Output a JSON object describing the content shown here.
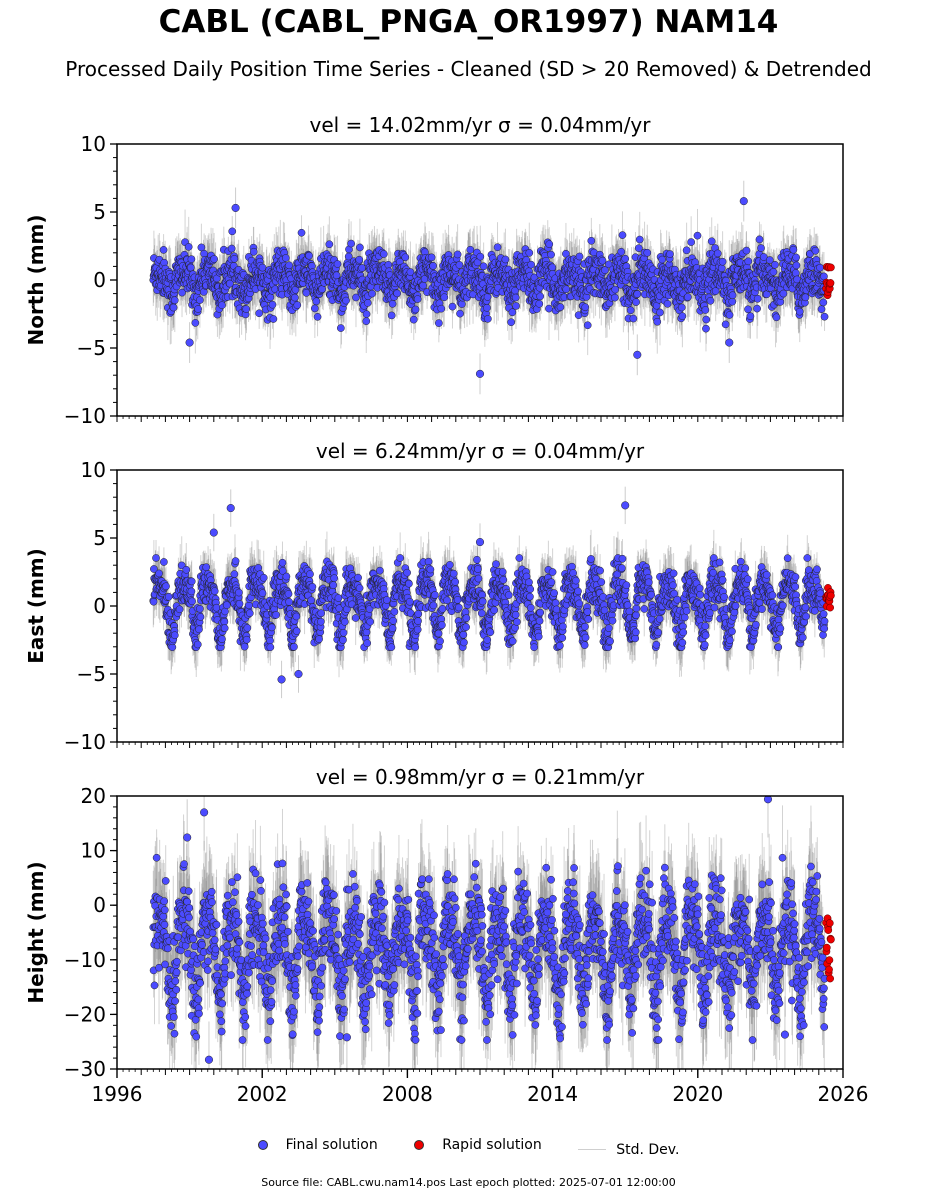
{
  "title": "CABL (CABL_PNGA_OR1997) NAM14",
  "subtitle": "Processed Daily Position Time Series - Cleaned (SD > 20 Removed) & Detrended",
  "legend": {
    "final_label": "Final solution",
    "rapid_label": "Rapid solution",
    "std_label": "Std. Dev."
  },
  "footer": "Source file: CABL.cwu.nam14.pos  Last epoch plotted: 2025-07-01 12:00:00",
  "colors": {
    "final": "#4b4bff",
    "rapid": "#ee0000",
    "std_dev": "#808080",
    "marker_edge": "#222222"
  },
  "chart_data": [
    {
      "type": "scatter",
      "panel": "north",
      "title": "vel = 14.02mm/yr   σ = 0.04mm/yr",
      "ylabel": "North (mm)",
      "xlabel": "",
      "xlim": [
        1996,
        2026
      ],
      "ylim": [
        -10,
        10
      ],
      "yticks": [
        -10,
        -5,
        0,
        5,
        10
      ],
      "ytick_labels": [
        "−10",
        "−5",
        "0",
        "5",
        "10"
      ],
      "data_start": 1997.5,
      "data_end": 2025.25,
      "rapid_start": 2025.3,
      "rapid_end": 2025.5,
      "typical_range": [
        -3,
        3
      ],
      "seasonal_amplitude": 0.8,
      "outliers": [
        {
          "x": 2011.0,
          "y": -6.9
        },
        {
          "x": 2021.9,
          "y": 5.8
        },
        {
          "x": 2017.5,
          "y": -5.5
        },
        {
          "x": 2021.3,
          "y": -4.6
        },
        {
          "x": 1999.0,
          "y": -4.6
        },
        {
          "x": 2000.9,
          "y": 5.3
        }
      ]
    },
    {
      "type": "scatter",
      "panel": "east",
      "title": "vel = 6.24mm/yr   σ = 0.04mm/yr",
      "ylabel": "East (mm)",
      "xlabel": "",
      "xlim": [
        1996,
        2026
      ],
      "ylim": [
        -10,
        10
      ],
      "yticks": [
        -10,
        -5,
        0,
        5,
        10
      ],
      "ytick_labels": [
        "−10",
        "−5",
        "0",
        "5",
        "10"
      ],
      "data_start": 1997.5,
      "data_end": 2025.25,
      "rapid_start": 2025.3,
      "rapid_end": 2025.5,
      "typical_range": [
        -2.5,
        3
      ],
      "seasonal_amplitude": 1.8,
      "outliers": [
        {
          "x": 2000.7,
          "y": 7.2
        },
        {
          "x": 2000.0,
          "y": 5.4
        },
        {
          "x": 2017.0,
          "y": 7.4
        },
        {
          "x": 2002.8,
          "y": -5.4
        },
        {
          "x": 2003.5,
          "y": -5.0
        },
        {
          "x": 2011.0,
          "y": 4.7
        }
      ]
    },
    {
      "type": "scatter",
      "panel": "height",
      "title": "vel = 0.98mm/yr   σ = 0.21mm/yr",
      "ylabel": "Height (mm)",
      "xlabel": "",
      "xlim": [
        1996,
        2026
      ],
      "ylim": [
        -30,
        20
      ],
      "yticks": [
        -30,
        -20,
        -10,
        0,
        10,
        20
      ],
      "ytick_labels": [
        "−30",
        "−20",
        "−10",
        "0",
        "10",
        "20"
      ],
      "xticks": [
        1996,
        2002,
        2008,
        2014,
        2020,
        2026
      ],
      "xtick_labels": [
        "1996",
        "2002",
        "2008",
        "2014",
        "2020",
        "2026"
      ],
      "data_start": 1997.5,
      "data_end": 2025.25,
      "rapid_start": 2025.3,
      "rapid_end": 2025.5,
      "typical_range": [
        -22,
        6
      ],
      "seasonal_amplitude": 7,
      "outliers": [
        {
          "x": 1999.6,
          "y": 17.0
        },
        {
          "x": 2022.9,
          "y": 19.4
        },
        {
          "x": 1999.8,
          "y": -28.3
        },
        {
          "x": 2005.5,
          "y": -24.2
        },
        {
          "x": 2023.6,
          "y": -23.7
        },
        {
          "x": 1998.9,
          "y": 12.4
        }
      ]
    }
  ]
}
